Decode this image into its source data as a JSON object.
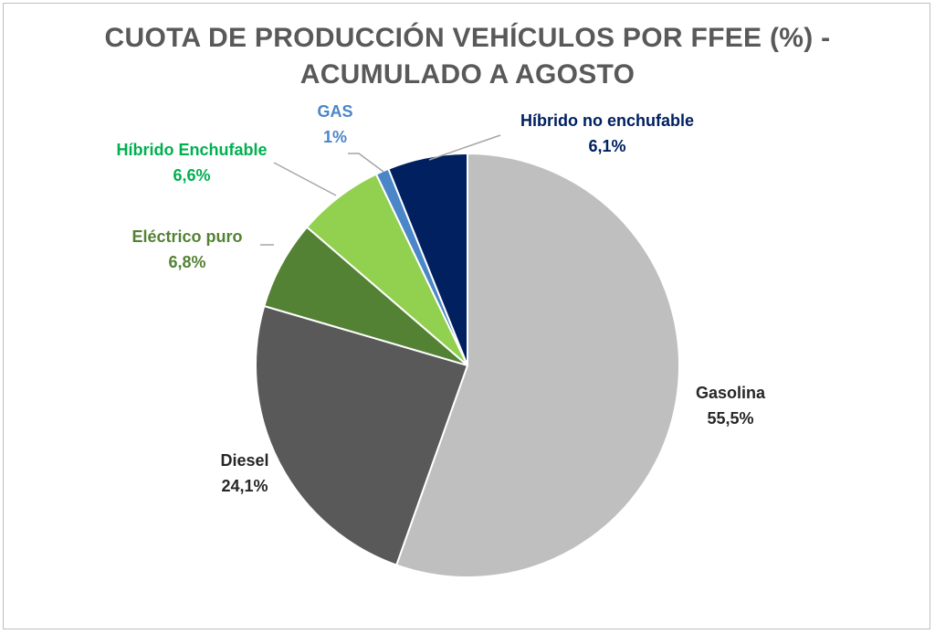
{
  "chart_data": {
    "type": "pie",
    "title_lines": [
      "CUOTA DE PRODUCCIÓN VEHÍCULOS POR FFEE (%) -",
      "ACUMULADO A AGOSTO"
    ],
    "start_angle_deg": 0,
    "direction": "clockwise",
    "slices": [
      {
        "label": "Gasolina",
        "value": 55.5,
        "value_label": "55,5%",
        "color": "#bfbfbf",
        "label_color": "#262626"
      },
      {
        "label": "Diesel",
        "value": 24.1,
        "value_label": "24,1%",
        "color": "#595959",
        "label_color": "#262626"
      },
      {
        "label": "Eléctrico puro",
        "value": 6.8,
        "value_label": "6,8%",
        "color": "#548235",
        "label_color": "#548235"
      },
      {
        "label": "Híbrido Enchufable",
        "value": 6.6,
        "value_label": "6,6%",
        "color": "#92d050",
        "label_color": "#00b050"
      },
      {
        "label": "GAS",
        "value": 1,
        "value_label": "1%",
        "color": "#4a86c8",
        "label_color": "#4a86c8"
      },
      {
        "label": "Híbrido no enchufable",
        "value": 6.1,
        "value_label": "6,1%",
        "color": "#002060",
        "label_color": "#002060"
      }
    ]
  }
}
